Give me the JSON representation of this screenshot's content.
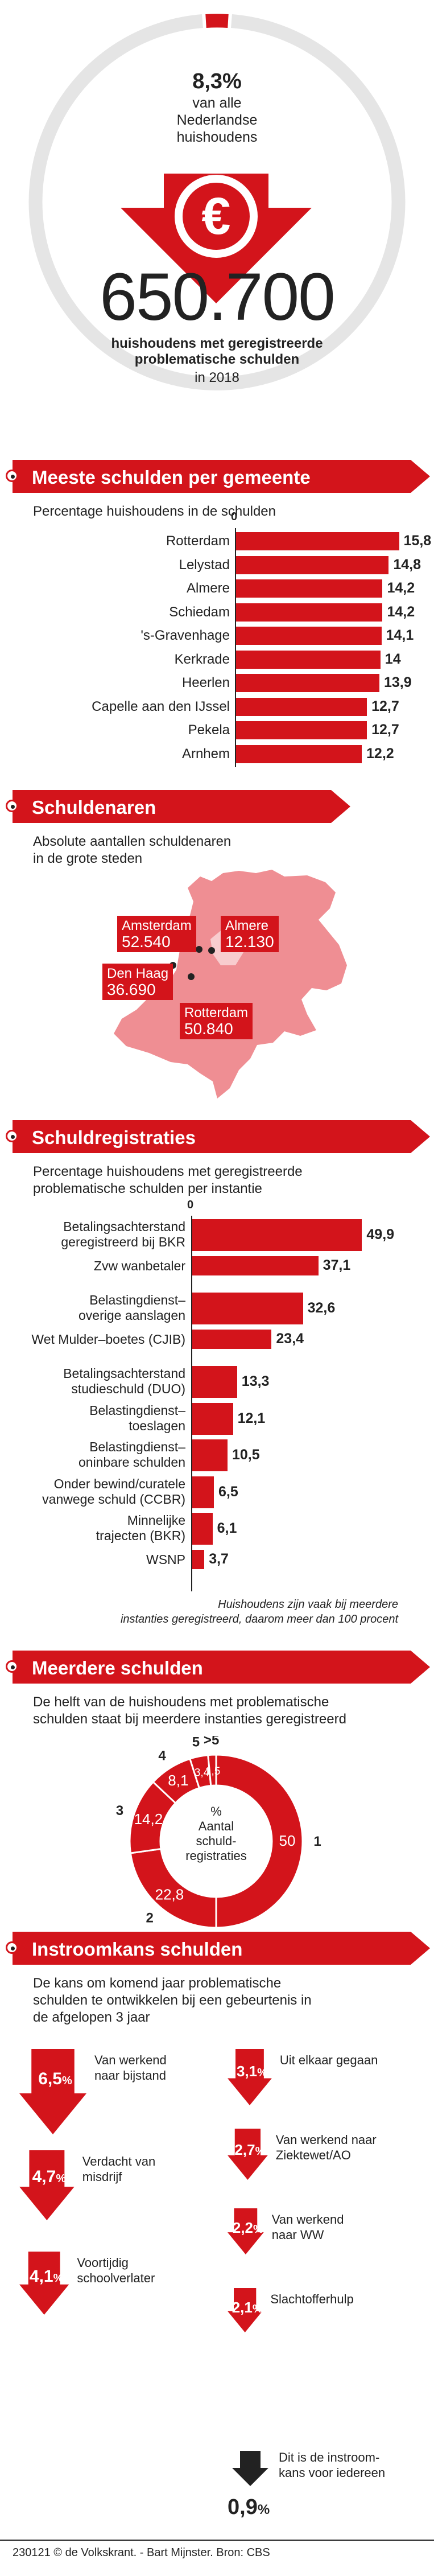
{
  "top": {
    "percent": "8,3%",
    "subtitle_lines": [
      "van alle",
      "Nederlandse",
      "huishoudens"
    ],
    "euro_symbol": "€",
    "big_number": "650.700",
    "caption_lines": [
      "huishoudens met geregistreerde",
      "problematische schulden"
    ],
    "year": "in 2018"
  },
  "sec1": {
    "title": "Meeste schulden per gemeente",
    "subtitle": "Percentage huishoudens in de schulden"
  },
  "sec2": {
    "title": "Schuldenaren",
    "subtitle_lines": [
      "Absolute aantallen schuldenaren",
      "in de grote steden"
    ],
    "cities": [
      {
        "name": "Amsterdam",
        "value": "52.540"
      },
      {
        "name": "Almere",
        "value": "12.130"
      },
      {
        "name": "Den Haag",
        "value": "36.690"
      },
      {
        "name": "Rotterdam",
        "value": "50.840"
      }
    ]
  },
  "sec3": {
    "title": "Schuldregistraties",
    "subtitle_lines": [
      "Percentage huishoudens met geregistreerde",
      "problematische schulden per instantie"
    ],
    "note_lines": [
      "Huishoudens zijn vaak bij meerdere",
      "instanties geregistreerd, daarom meer dan 100 procent"
    ]
  },
  "sec4": {
    "title": "Meerdere schulden",
    "subtitle_lines": [
      "De helft van de huishoudens met problematische",
      "schulden staat bij meerdere instanties geregistreerd"
    ],
    "center_lines": [
      "%",
      "Aantal",
      "schuld-",
      "registraties"
    ]
  },
  "sec5": {
    "title": "Instroomkans schulden",
    "subtitle_lines": [
      "De kans om komend jaar problematische",
      "schulden te ontwikkelen bij een gebeurtenis in",
      "de afgelopen 3 jaar"
    ],
    "items": [
      {
        "value": "6,5",
        "label_lines": [
          "Van werkend",
          "naar bijstand"
        ]
      },
      {
        "value": "4,7",
        "label_lines": [
          "Verdacht van",
          "misdrijf"
        ]
      },
      {
        "value": "4,1",
        "label_lines": [
          "Voortijdig",
          "schoolverlater"
        ]
      },
      {
        "value": "3,1",
        "label_lines": [
          "Uit elkaar gegaan"
        ]
      },
      {
        "value": "2,7",
        "label_lines": [
          "Van werkend naar",
          "Ziektewet/AO"
        ]
      },
      {
        "value": "2,2",
        "label_lines": [
          "Van werkend",
          "naar WW"
        ]
      },
      {
        "value": "2,1",
        "label_lines": [
          "Slachtofferhulp"
        ]
      }
    ],
    "baseline": {
      "value": "0,9",
      "label_lines": [
        "Dit is de instroom-",
        "kans voor iedereen"
      ]
    },
    "pct_sign": "%"
  },
  "footer": "230121 © de Volkskrant. - Bart Mijnster. Bron: CBS",
  "colors": {
    "accent": "#d3141b",
    "light_accent": "#f08a8f",
    "map_fill": "#ef8e93"
  },
  "chart_data": [
    {
      "type": "bar",
      "title": "Meeste schulden per gemeente",
      "subtitle": "Percentage huishoudens in de schulden",
      "categories": [
        "Rotterdam",
        "Lelystad",
        "Almere",
        "Schiedam",
        "'s-Gravenhage",
        "Kerkrade",
        "Heerlen",
        "Capelle aan den IJssel",
        "Pekela",
        "Arnhem"
      ],
      "values": [
        15.8,
        14.8,
        14.2,
        14.2,
        14.1,
        14,
        13.9,
        12.7,
        12.7,
        12.2
      ],
      "value_labels": [
        "15,8",
        "14,8",
        "14,2",
        "14,2",
        "14,1",
        "14",
        "13,9",
        "12,7",
        "12,7",
        "12,2"
      ],
      "axis_zero": "0",
      "orientation": "horizontal"
    },
    {
      "type": "bar",
      "title": "Schuldregistraties",
      "categories": [
        [
          "Betalingsachterstand",
          "geregistreerd bij BKR"
        ],
        [
          "Zvw wanbetaler"
        ],
        [
          "Belastingdienst–",
          "overige aanslagen"
        ],
        [
          "Wet Mulder–boetes (CJIB)"
        ],
        [
          "Betalingsachterstand",
          "studieschuld (DUO)"
        ],
        [
          "Belastingdienst–",
          "toeslagen"
        ],
        [
          "Belastingdienst–",
          "oninbare schulden"
        ],
        [
          "Onder bewind/curatele",
          "vanwege schuld (CCBR)"
        ],
        [
          "Minnelijke",
          "trajecten (BKR)"
        ],
        [
          "WSNP"
        ]
      ],
      "values": [
        49.9,
        37.1,
        32.6,
        23.4,
        13.3,
        12.1,
        10.5,
        6.5,
        6.1,
        3.7
      ],
      "value_labels": [
        "49,9",
        "37,1",
        "32,6",
        "23,4",
        "13,3",
        "12,1",
        "10,5",
        "6,5",
        "6,1",
        "3,7"
      ],
      "axis_zero": "0",
      "orientation": "horizontal"
    },
    {
      "type": "pie",
      "title": "Meerdere schulden",
      "categories": [
        "1",
        "2",
        "3",
        "4",
        "5",
        ">5"
      ],
      "values": [
        50,
        22.8,
        14.2,
        8.1,
        3.4,
        1.5
      ],
      "value_labels": [
        "50",
        "22,8",
        "14,2",
        "8,1",
        "3,4",
        "1,5"
      ]
    }
  ]
}
